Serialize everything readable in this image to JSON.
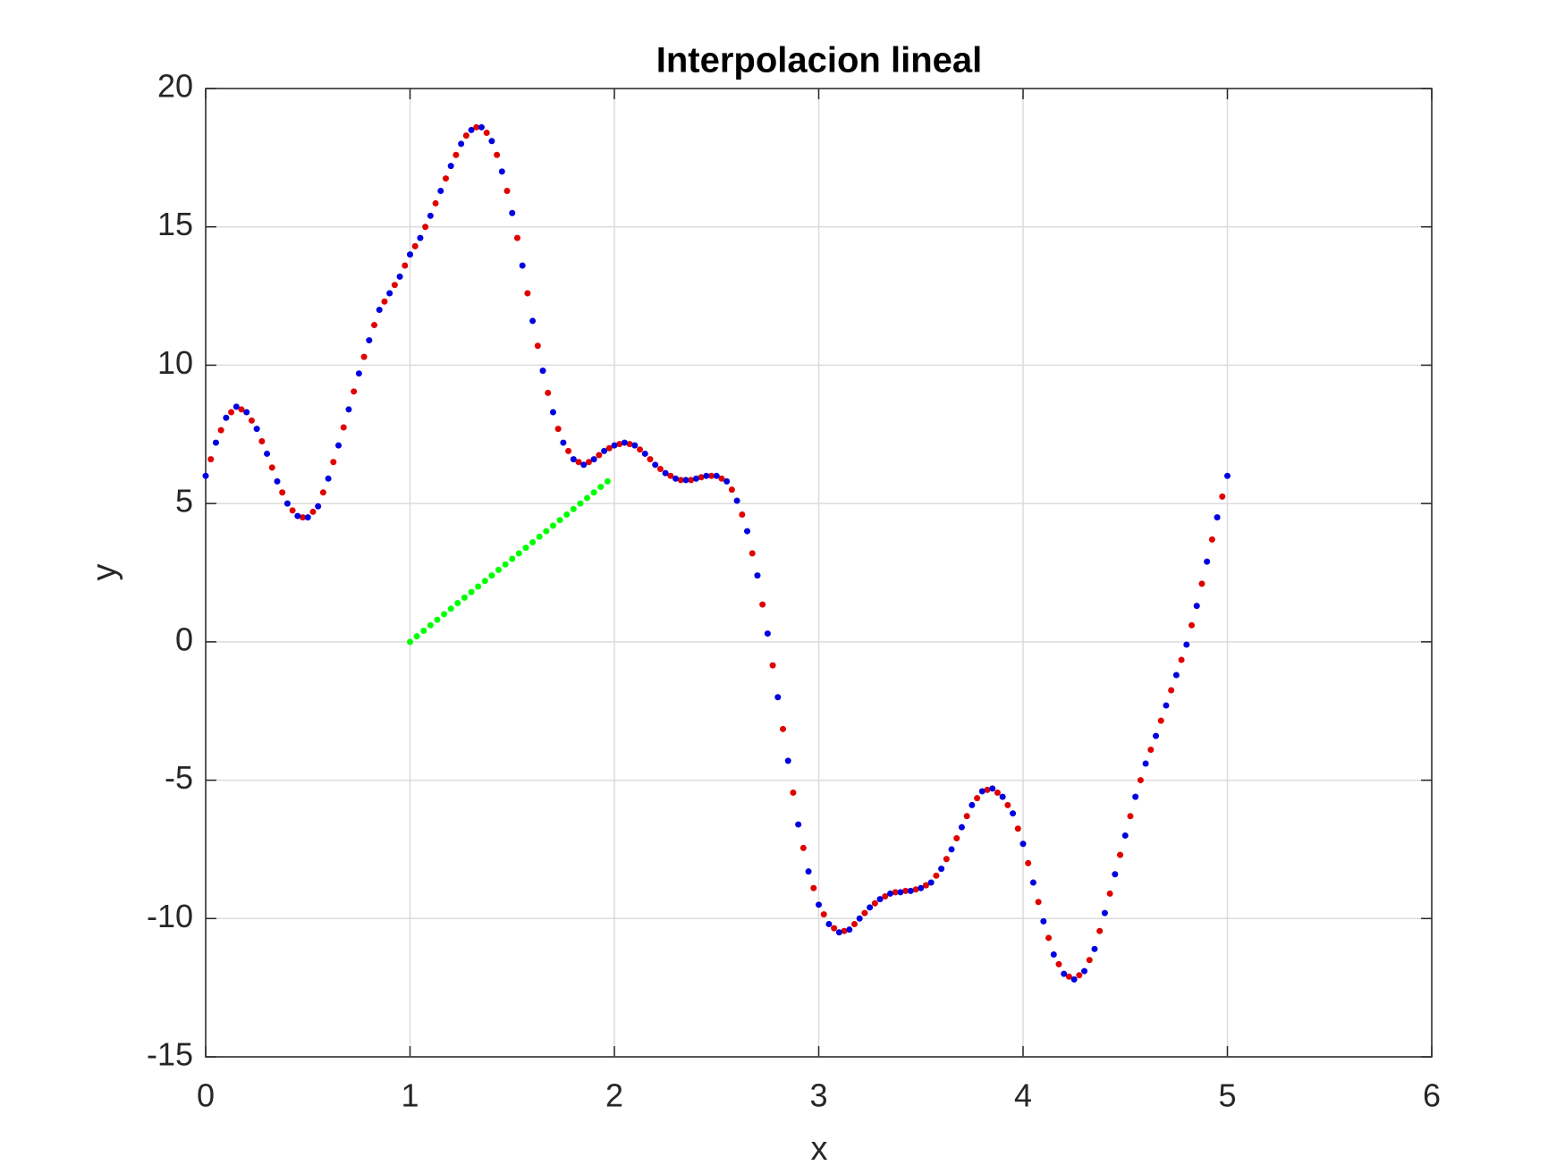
{
  "chart_data": {
    "type": "scatter",
    "title": "Interpolacion lineal",
    "xlabel": "x",
    "ylabel": "y",
    "xlim": [
      0,
      6
    ],
    "ylim": [
      -15,
      20
    ],
    "xticks": [
      0,
      1,
      2,
      3,
      4,
      5,
      6
    ],
    "yticks": [
      -15,
      -10,
      -5,
      0,
      5,
      10,
      15,
      20
    ],
    "grid": true,
    "series": [
      {
        "color": "#e00000",
        "x": [
          0.025,
          0.075,
          0.125,
          0.175,
          0.225,
          0.275,
          0.325,
          0.375,
          0.425,
          0.475,
          0.525,
          0.575,
          0.625,
          0.675,
          0.725,
          0.775,
          0.825,
          0.875,
          0.925,
          0.975,
          1.025,
          1.075,
          1.125,
          1.175,
          1.225,
          1.275,
          1.325,
          1.375,
          1.425,
          1.475,
          1.525,
          1.575,
          1.625,
          1.675,
          1.725,
          1.775,
          1.825,
          1.875,
          1.925,
          1.975,
          2.025,
          2.075,
          2.125,
          2.175,
          2.225,
          2.275,
          2.325,
          2.375,
          2.425,
          2.475,
          2.525,
          2.575,
          2.625,
          2.675,
          2.725,
          2.775,
          2.825,
          2.875,
          2.925,
          2.975,
          3.025,
          3.075,
          3.125,
          3.175,
          3.225,
          3.275,
          3.325,
          3.375,
          3.425,
          3.475,
          3.525,
          3.575,
          3.625,
          3.675,
          3.725,
          3.775,
          3.825,
          3.875,
          3.925,
          3.975,
          4.025,
          4.075,
          4.125,
          4.175,
          4.225,
          4.275,
          4.325,
          4.375,
          4.425,
          4.475,
          4.525,
          4.575,
          4.625,
          4.675,
          4.725,
          4.775,
          4.825,
          4.875,
          4.925,
          4.975
        ],
        "values": [
          6.6,
          7.65,
          8.3,
          8.4,
          8.0,
          7.25,
          6.3,
          5.4,
          4.75,
          4.5,
          4.7,
          5.4,
          6.5,
          7.75,
          9.05,
          10.3,
          11.45,
          12.3,
          12.9,
          13.6,
          14.3,
          15.0,
          15.85,
          16.75,
          17.6,
          18.3,
          18.6,
          18.4,
          17.6,
          16.3,
          14.6,
          12.6,
          10.7,
          9.0,
          7.7,
          6.9,
          6.5,
          6.5,
          6.75,
          7.0,
          7.15,
          7.15,
          6.95,
          6.6,
          6.25,
          6.0,
          5.85,
          5.85,
          5.95,
          6.0,
          5.9,
          5.5,
          4.6,
          3.2,
          1.35,
          -0.85,
          -3.15,
          -5.45,
          -7.45,
          -8.9,
          -9.85,
          -10.35,
          -10.45,
          -10.2,
          -9.8,
          -9.45,
          -9.2,
          -9.05,
          -9.0,
          -8.95,
          -8.8,
          -8.45,
          -7.85,
          -7.1,
          -6.3,
          -5.65,
          -5.35,
          -5.45,
          -5.9,
          -6.75,
          -8.0,
          -9.4,
          -10.7,
          -11.65,
          -12.1,
          -12.05,
          -11.5,
          -10.45,
          -9.1,
          -7.7,
          -6.3,
          -5.0,
          -3.9,
          -2.85,
          -1.75,
          -0.65,
          0.6,
          2.1,
          3.7,
          5.25
        ]
      },
      {
        "color": "#0000e0",
        "x": [
          0,
          0.05,
          0.1,
          0.15,
          0.2,
          0.25,
          0.3,
          0.35,
          0.4,
          0.45,
          0.5,
          0.55,
          0.6,
          0.65,
          0.7,
          0.75,
          0.8,
          0.85,
          0.9,
          0.95,
          1,
          1.05,
          1.1,
          1.15,
          1.2,
          1.25,
          1.3,
          1.35,
          1.4,
          1.45,
          1.5,
          1.55,
          1.6,
          1.65,
          1.7,
          1.75,
          1.8,
          1.85,
          1.9,
          1.95,
          2,
          2.05,
          2.1,
          2.15,
          2.2,
          2.25,
          2.3,
          2.35,
          2.4,
          2.45,
          2.5,
          2.55,
          2.6,
          2.65,
          2.7,
          2.75,
          2.8,
          2.85,
          2.9,
          2.95,
          3,
          3.05,
          3.1,
          3.15,
          3.2,
          3.25,
          3.3,
          3.35,
          3.4,
          3.45,
          3.5,
          3.55,
          3.6,
          3.65,
          3.7,
          3.75,
          3.8,
          3.85,
          3.9,
          3.95,
          4,
          4.05,
          4.1,
          4.15,
          4.2,
          4.25,
          4.3,
          4.35,
          4.4,
          4.45,
          4.5,
          4.55,
          4.6,
          4.65,
          4.7,
          4.75,
          4.8,
          4.85,
          4.9,
          4.95,
          5
        ],
        "values": [
          6.0,
          7.2,
          8.1,
          8.5,
          8.3,
          7.7,
          6.8,
          5.8,
          5.0,
          4.55,
          4.5,
          4.9,
          5.9,
          7.1,
          8.4,
          9.7,
          10.9,
          12.0,
          12.6,
          13.2,
          14.0,
          14.6,
          15.4,
          16.3,
          17.2,
          18.0,
          18.5,
          18.6,
          18.1,
          17.0,
          15.5,
          13.6,
          11.6,
          9.8,
          8.3,
          7.2,
          6.6,
          6.4,
          6.6,
          6.9,
          7.1,
          7.2,
          7.1,
          6.8,
          6.4,
          6.1,
          5.9,
          5.85,
          5.9,
          6.0,
          6.0,
          5.8,
          5.1,
          4.0,
          2.4,
          0.3,
          -2.0,
          -4.3,
          -6.6,
          -8.3,
          -9.5,
          -10.2,
          -10.5,
          -10.4,
          -10.0,
          -9.6,
          -9.3,
          -9.1,
          -9.05,
          -9.0,
          -8.9,
          -8.7,
          -8.2,
          -7.5,
          -6.7,
          -5.9,
          -5.4,
          -5.3,
          -5.6,
          -6.2,
          -7.3,
          -8.7,
          -10.1,
          -11.3,
          -12.0,
          -12.2,
          -11.9,
          -11.1,
          -9.8,
          -8.4,
          -7.0,
          -5.6,
          -4.4,
          -3.4,
          -2.3,
          -1.2,
          -0.1,
          1.3,
          2.9,
          4.5,
          6.0
        ]
      },
      {
        "color": "#00ff00",
        "x": [
          1,
          1.0333,
          1.0667,
          1.1,
          1.1333,
          1.1667,
          1.2,
          1.2333,
          1.2667,
          1.3,
          1.3333,
          1.3667,
          1.4,
          1.4333,
          1.4667,
          1.5,
          1.5333,
          1.5667,
          1.6,
          1.6333,
          1.6667,
          1.7,
          1.7333,
          1.7667,
          1.8,
          1.8333,
          1.8667,
          1.9,
          1.9333,
          1.9667
        ],
        "values": [
          0,
          0.2,
          0.4,
          0.6,
          0.8,
          1.0,
          1.2,
          1.4,
          1.6,
          1.8,
          2.0,
          2.2,
          2.4,
          2.6,
          2.8,
          3.0,
          3.2,
          3.4,
          3.6,
          3.8,
          4.0,
          4.2,
          4.4,
          4.6,
          4.8,
          5.0,
          5.2,
          5.4,
          5.6,
          5.8
        ]
      }
    ]
  }
}
